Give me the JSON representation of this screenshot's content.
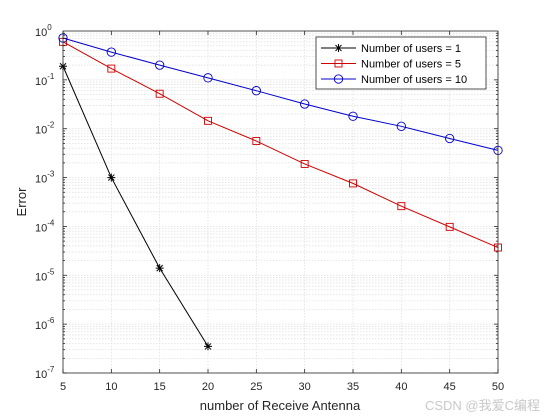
{
  "chart_data": {
    "type": "line",
    "xlabel": "number of Receive Antenna",
    "ylabel": "Error",
    "xlim": [
      5,
      50
    ],
    "ylim": [
      1e-07,
      1
    ],
    "yscale": "log",
    "grid": "on (major and minor)",
    "legend_position": "top-right",
    "x_ticks": [
      5,
      10,
      15,
      20,
      25,
      30,
      35,
      40,
      45,
      50
    ],
    "y_ticks": [
      {
        "value": 1e-07,
        "base": "10",
        "exp": "-7"
      },
      {
        "value": 1e-06,
        "base": "10",
        "exp": "-6"
      },
      {
        "value": 1e-05,
        "base": "10",
        "exp": "-5"
      },
      {
        "value": 0.0001,
        "base": "10",
        "exp": "-4"
      },
      {
        "value": 0.001,
        "base": "10",
        "exp": "-3"
      },
      {
        "value": 0.01,
        "base": "10",
        "exp": "-2"
      },
      {
        "value": 0.1,
        "base": "10",
        "exp": "-1"
      },
      {
        "value": 1,
        "base": "10",
        "exp": "0"
      }
    ],
    "series": [
      {
        "name": "Number of users = 1",
        "color": "#000000",
        "marker": "asterisk",
        "x": [
          5,
          10,
          15,
          20
        ],
        "y": [
          0.19,
          0.001,
          1.4e-05,
          3.5e-07
        ]
      },
      {
        "name": "Number of users = 5",
        "color": "#d00000",
        "marker": "square",
        "x": [
          5,
          10,
          15,
          20,
          25,
          30,
          35,
          40,
          45,
          50
        ],
        "y": [
          0.6,
          0.17,
          0.052,
          0.0145,
          0.0056,
          0.0019,
          0.00076,
          0.00026,
          9.8e-05,
          3.7e-05
        ]
      },
      {
        "name": "Number of users = 10",
        "color": "#0000cc",
        "marker": "circle",
        "x": [
          5,
          10,
          15,
          20,
          25,
          30,
          35,
          40,
          45,
          50
        ],
        "y": [
          0.72,
          0.37,
          0.2,
          0.11,
          0.06,
          0.032,
          0.018,
          0.0112,
          0.0063,
          0.0036
        ]
      }
    ]
  },
  "watermark": "CSDN @我爱C编程"
}
